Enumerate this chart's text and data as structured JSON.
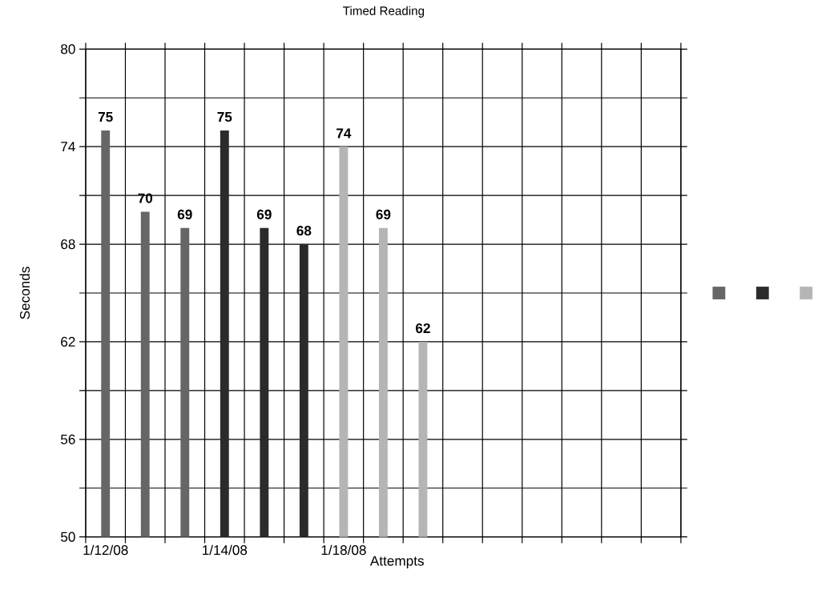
{
  "chart_data": {
    "type": "bar",
    "title": "Timed Reading",
    "xlabel": "Attempts",
    "ylabel": "Seconds",
    "categories": [
      "1/12/08",
      null,
      null,
      "1/14/08",
      null,
      null,
      "1/18/08",
      null,
      null,
      null,
      null,
      null,
      null,
      null,
      null
    ],
    "series": [
      {
        "color": "#666666",
        "values": [
          75,
          70,
          69,
          null,
          null,
          null,
          null,
          null,
          null,
          null,
          null,
          null,
          null,
          null,
          null
        ]
      },
      {
        "color": "#2b2b2b",
        "values": [
          null,
          null,
          null,
          75,
          69,
          68,
          null,
          null,
          null,
          null,
          null,
          null,
          null,
          null,
          null
        ]
      },
      {
        "color": "#b5b5b5",
        "values": [
          null,
          null,
          null,
          null,
          null,
          null,
          74,
          69,
          62,
          null,
          null,
          null,
          null,
          null,
          null
        ]
      }
    ],
    "ylim": [
      50,
      80
    ],
    "yticks": [
      50,
      {
        "value": 53,
        "label": null
      },
      56,
      {
        "value": 59,
        "label": null
      },
      62,
      {
        "value": 65,
        "label": null
      },
      68,
      {
        "value": 71,
        "label": null
      },
      74,
      {
        "value": 77,
        "label": null
      },
      80
    ],
    "grid": true,
    "data_labels": true
  }
}
